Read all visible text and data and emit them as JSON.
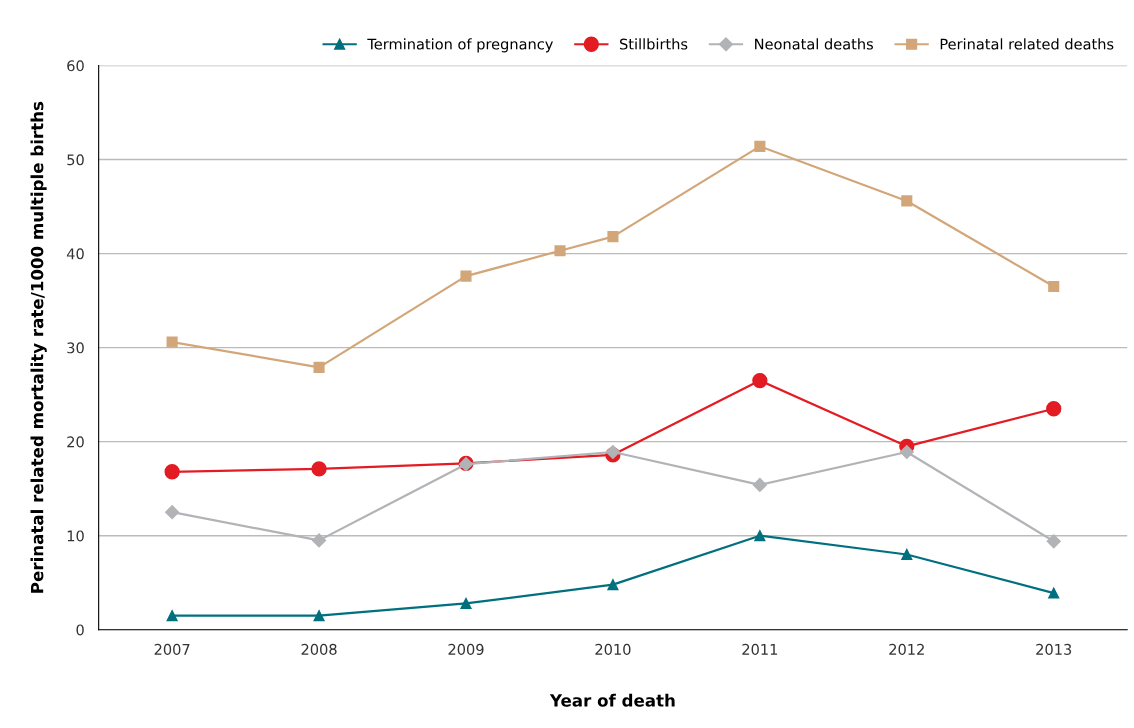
{
  "chart_data": {
    "type": "line",
    "xlabel": "Year of death",
    "ylabel": "Perinatal related mortality rate/1000 multiple births",
    "x": [
      2007,
      2008,
      2009,
      2010,
      2011,
      2012,
      2013
    ],
    "xlim": [
      2006.5,
      2013.5
    ],
    "xticks": [
      2007,
      2008,
      2009,
      2010,
      2011,
      2012,
      2013
    ],
    "ylim": [
      0,
      60
    ],
    "yticks": [
      0,
      10,
      20,
      30,
      40,
      50,
      60
    ],
    "grid": "y",
    "legend": "top",
    "line_style": "solid",
    "series": [
      {
        "name": "Termination of pregnancy",
        "color": "#00707f",
        "marker": "triangle",
        "values": [
          1.5,
          1.5,
          2.8,
          4.8,
          10,
          8,
          3.9
        ]
      },
      {
        "name": "Stillbirths",
        "color": "#e31b23",
        "marker": "circle",
        "values": [
          16.8,
          17.1,
          17.7,
          18.6,
          26.5,
          19.5,
          23.5
        ]
      },
      {
        "name": "Neonatal deaths",
        "color": "#b1b3b6",
        "marker": "diamond",
        "values": [
          12.5,
          9.5,
          17.6,
          18.9,
          15.4,
          18.9,
          9.4
        ]
      },
      {
        "name": "Perinatal related deaths",
        "color": "#d2a678",
        "marker": "square",
        "x": [
          2007,
          2008,
          2009,
          2009.64,
          2010,
          2011,
          2012,
          2013
        ],
        "values": [
          30.6,
          27.9,
          37.6,
          40.3,
          41.8,
          51.4,
          45.6,
          36.5
        ]
      }
    ]
  }
}
